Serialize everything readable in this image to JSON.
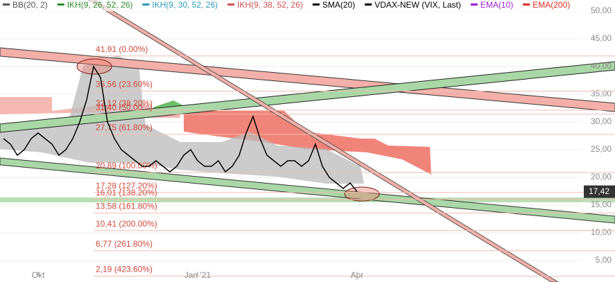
{
  "chart_data": {
    "type": "line",
    "indicators": [
      {
        "name": "BB(20, 2)",
        "color": "#555555"
      },
      {
        "name": "IKH(9, 26, 52, 26)",
        "color": "#2e8b2e"
      },
      {
        "name": "IKH(9, 30, 52, 26)",
        "color": "#2a9bb5"
      },
      {
        "name": "IKH(9, 38, 52, 26)",
        "color": "#d05050"
      },
      {
        "name": "SMA(20)",
        "color": "#000000"
      },
      {
        "name": "VDAX-NEW (VIX, Last)",
        "color": "#000000"
      },
      {
        "name": "EMA(10)",
        "color": "#9b1fd0"
      },
      {
        "name": "EMA(200)",
        "color": "#e03020"
      }
    ],
    "categories": [
      null,
      null,
      null,
      null,
      null,
      "Okt",
      null,
      null,
      null,
      null,
      null,
      null,
      null,
      null,
      null,
      null,
      null,
      null,
      null,
      null,
      null,
      null,
      null,
      null,
      null,
      null,
      null,
      null,
      "Jan '21",
      null,
      null,
      null,
      null,
      null,
      null,
      null,
      null,
      null,
      null,
      null,
      null,
      null,
      null,
      null,
      null,
      null,
      null,
      null,
      null,
      null,
      null,
      "Apr"
    ],
    "series": [
      {
        "name": "VDAX-NEW (VIX, Last)",
        "color": "#000000",
        "values": [
          27,
          26,
          24,
          25,
          27,
          28,
          27,
          26,
          24,
          25,
          27,
          30,
          34,
          40,
          38,
          30,
          27,
          25,
          24,
          23,
          22,
          22,
          23,
          22,
          21,
          22,
          24,
          25,
          23,
          22,
          22,
          23,
          21,
          22,
          24,
          28,
          31,
          27,
          24,
          23,
          22,
          23,
          23,
          22,
          23,
          26,
          22,
          20,
          19,
          18,
          19,
          17.42
        ],
        "value_labels": [
          null,
          null,
          null,
          null,
          null,
          null,
          null,
          null,
          null,
          null,
          null,
          null,
          null,
          null,
          null,
          null,
          null,
          null,
          null,
          null,
          null,
          null,
          null,
          null,
          null,
          null,
          null,
          null,
          null,
          null,
          null,
          null,
          null,
          null,
          null,
          null,
          null,
          null,
          null,
          null,
          null,
          null,
          null,
          null,
          null,
          null,
          null,
          null,
          null,
          null,
          null,
          "17,42"
        ]
      }
    ],
    "fibonacci": [
      {
        "value": 41.91,
        "label": "41,91 (0.00%)"
      },
      {
        "value": 35.56,
        "label": "35,56 (23.60%)"
      },
      {
        "value": 32.12,
        "label": "32,12 (38.20%)"
      },
      {
        "value": 31.4,
        "label": "31,40 (50.00%)"
      },
      {
        "value": 27.75,
        "label": "27,75 (61.80%)"
      },
      {
        "value": 20.89,
        "label": "20,89 (100.00%)"
      },
      {
        "value": 17.28,
        "label": "17,28 (127.20%)"
      },
      {
        "value": 16.01,
        "label": "16,01 (138.20%)"
      },
      {
        "value": 13.58,
        "label": "13,58 (161.80%)"
      },
      {
        "value": 10.41,
        "label": "10,41 (200.00%)"
      },
      {
        "value": 6.77,
        "label": "6,77 (261.80%)"
      },
      {
        "value": 2.19,
        "label": "2,19 (423.60%)"
      }
    ],
    "ylim": [
      1.125,
      52
    ],
    "yticks": [
      {
        "value": 50,
        "label": "50,00"
      },
      {
        "value": 45,
        "label": "45,00"
      },
      {
        "value": 40,
        "label": "40,00"
      },
      {
        "value": 35,
        "label": "35,00"
      },
      {
        "value": 30,
        "label": "30,00"
      },
      {
        "value": 25,
        "label": "25,00"
      },
      {
        "value": 20,
        "label": "20,00"
      },
      {
        "value": 15,
        "label": "15,00"
      },
      {
        "value": 10,
        "label": "10,00"
      },
      {
        "value": 5,
        "label": "5,00"
      }
    ],
    "grid": true
  }
}
